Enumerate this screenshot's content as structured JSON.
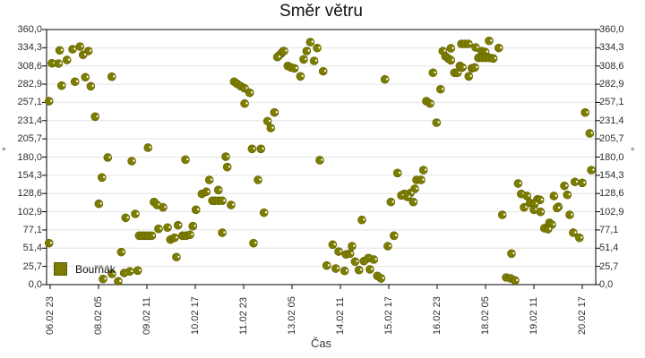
{
  "title": "Směr větru",
  "legend": {
    "label": "Bouřňák",
    "color": "#7c7c00"
  },
  "axes": {
    "y_left_title": "°",
    "y_right_title": "°",
    "x_title": "Čas",
    "y_ticks": [
      "360,0",
      "334,3",
      "308,6",
      "282,9",
      "257,1",
      "231,4",
      "205,7",
      "180,0",
      "154,3",
      "128,6",
      "102,9",
      "77,1",
      "51,4",
      "25,7",
      "0,0"
    ],
    "x_ticks": [
      "06.02 23",
      "08.02 05",
      "09.02 11",
      "10.02 17",
      "11.02 23",
      "13.02 05",
      "14.02 11",
      "15.02 17",
      "16.02 23",
      "18.02 05",
      "19.02 11",
      "20.02 17"
    ]
  },
  "colors": {
    "marker": "#7c7c00",
    "marker_edge": "#5e5e00",
    "grid": "#e4e4e4",
    "axis": "#000000"
  },
  "chart_data": {
    "type": "scatter",
    "title": "Směr větru",
    "xlabel": "Čas",
    "ylabel": "°",
    "legend_position": "bottom-left-inside",
    "grid": "horizontal-only",
    "y_axis": {
      "min": 0,
      "max": 360,
      "tick_step": 25.714,
      "tick_labels": [
        "360,0",
        "334,3",
        "308,6",
        "282,9",
        "257,1",
        "231,4",
        "205,7",
        "180,0",
        "154,3",
        "128,6",
        "102,9",
        "77,1",
        "51,4",
        "25,7",
        "0,0"
      ]
    },
    "x_axis": {
      "unit": "hours since 06.02 23:00",
      "tick_interval_hours": 30,
      "tick_labels": [
        "06.02 23",
        "08.02 05",
        "09.02 11",
        "10.02 17",
        "11.02 23",
        "13.02 05",
        "14.02 11",
        "15.02 17",
        "16.02 23",
        "18.02 05",
        "19.02 11",
        "20.02 17"
      ]
    },
    "series": [
      {
        "name": "Bouřňák",
        "color": "#7c7c00",
        "marker": "glossy-circle",
        "points_h_deg": [
          [
            5.9,
            330.6
          ],
          [
            13.9,
            332.2
          ],
          [
            18.5,
            336.0
          ],
          [
            23.7,
            329.7
          ],
          [
            20.4,
            324.3
          ],
          [
            1.1,
            312.4
          ],
          [
            5.2,
            312.0
          ],
          [
            10.4,
            317.1
          ],
          [
            15.4,
            286.4
          ],
          [
            21.8,
            292.7
          ],
          [
            7.1,
            280.8
          ],
          [
            25.2,
            280.0
          ],
          [
            38.2,
            293.4
          ],
          [
            -0.7,
            258.9
          ],
          [
            27.9,
            237.1
          ],
          [
            60.7,
            193.3
          ],
          [
            35.7,
            179.4
          ],
          [
            83.9,
            176.4
          ],
          [
            108.9,
            180.6
          ],
          [
            50.6,
            174.3
          ],
          [
            109.8,
            165.9
          ],
          [
            32.1,
            151.2
          ],
          [
            98.7,
            147.8
          ],
          [
            94.1,
            128.0
          ],
          [
            96.8,
            131.0
          ],
          [
            104.3,
            133.5
          ],
          [
            100.6,
            118.4
          ],
          [
            102.2,
            118.4
          ],
          [
            104.4,
            118.4
          ],
          [
            106.7,
            118.4
          ],
          [
            30.2,
            114.1
          ],
          [
            64.4,
            116.6
          ],
          [
            66.3,
            112.4
          ],
          [
            70.0,
            109.0
          ],
          [
            90.4,
            105.7
          ],
          [
            112.2,
            112.4
          ],
          [
            46.8,
            94.3
          ],
          [
            52.8,
            99.8
          ],
          [
            67.2,
            78.7
          ],
          [
            72.8,
            80.5
          ],
          [
            79.3,
            83.8
          ],
          [
            88.5,
            82.5
          ],
          [
            55.2,
            69.1
          ],
          [
            57.2,
            69.1
          ],
          [
            59.1,
            69.1
          ],
          [
            60.9,
            69.1
          ],
          [
            63.0,
            69.1
          ],
          [
            74.6,
            63.5
          ],
          [
            77.1,
            66.1
          ],
          [
            82.1,
            69.1
          ],
          [
            84.3,
            69.1
          ],
          [
            86.7,
            70.4
          ],
          [
            106.7,
            73.3
          ],
          [
            -0.7,
            58.5
          ],
          [
            44.1,
            45.9
          ],
          [
            78.3,
            38.8
          ],
          [
            32.8,
            8.0
          ],
          [
            38.3,
            15.2
          ],
          [
            42.2,
            4.7
          ],
          [
            45.9,
            16.4
          ],
          [
            49.4,
            18.6
          ],
          [
            54.3,
            19.8
          ],
          [
            161.3,
            342.3
          ],
          [
            165.6,
            333.9
          ],
          [
            159.1,
            329.7
          ],
          [
            144.6,
            329.7
          ],
          [
            141.8,
            322.9
          ],
          [
            143.3,
            326.3
          ],
          [
            145.0,
            329.7
          ],
          [
            140.9,
            321.2
          ],
          [
            157.2,
            317.9
          ],
          [
            163.7,
            315.8
          ],
          [
            147.4,
            308.6
          ],
          [
            149.3,
            306.5
          ],
          [
            151.5,
            305.3
          ],
          [
            169.3,
            301.1
          ],
          [
            155.2,
            293.9
          ],
          [
            207.6,
            289.6
          ],
          [
            114.1,
            286.4
          ],
          [
            115.9,
            283.4
          ],
          [
            118.2,
            280.0
          ],
          [
            120.6,
            277.0
          ],
          [
            123.7,
            270.7
          ],
          [
            120.6,
            255.5
          ],
          [
            139.1,
            242.9
          ],
          [
            134.8,
            230.7
          ],
          [
            136.8,
            221.0
          ],
          [
            125.2,
            191.6
          ],
          [
            130.7,
            191.6
          ],
          [
            167.2,
            175.6
          ],
          [
            215.4,
            157.5
          ],
          [
            128.9,
            147.8
          ],
          [
            226.1,
            135.2
          ],
          [
            223.3,
            129.2
          ],
          [
            219.6,
            128.0
          ],
          [
            217.8,
            125.9
          ],
          [
            221.5,
            123.8
          ],
          [
            225.2,
            116.6
          ],
          [
            211.3,
            116.6
          ],
          [
            132.6,
            101.5
          ],
          [
            193.3,
            91.3
          ],
          [
            213.2,
            69.1
          ],
          [
            126.1,
            58.5
          ],
          [
            175.2,
            56.4
          ],
          [
            187.2,
            54.3
          ],
          [
            209.4,
            54.3
          ],
          [
            178.9,
            46.7
          ],
          [
            183.5,
            42.6
          ],
          [
            185.9,
            43.8
          ],
          [
            189.1,
            32.5
          ],
          [
            194.6,
            33.2
          ],
          [
            197.4,
            37.5
          ],
          [
            200.7,
            35.4
          ],
          [
            171.5,
            26.9
          ],
          [
            177.1,
            22.7
          ],
          [
            182.6,
            19.3
          ],
          [
            191.5,
            20.6
          ],
          [
            198.3,
            21.5
          ],
          [
            202.9,
            12.3
          ],
          [
            205.2,
            8.8
          ],
          [
            231.5,
            161.7
          ],
          [
            227.2,
            147.8
          ],
          [
            230.0,
            147.8
          ],
          [
            335.6,
            161.7
          ],
          [
            290.2,
            142.7
          ],
          [
            318.9,
            139.4
          ],
          [
            325.4,
            144.9
          ],
          [
            330.0,
            143.6
          ],
          [
            292.1,
            128.0
          ],
          [
            295.7,
            125.1
          ],
          [
            302.2,
            120.4
          ],
          [
            303.7,
            119.6
          ],
          [
            312.4,
            125.1
          ],
          [
            320.7,
            126.7
          ],
          [
            297.6,
            115.3
          ],
          [
            300.4,
            114.1
          ],
          [
            293.9,
            109.0
          ],
          [
            315.2,
            109.9
          ],
          [
            314.3,
            108.2
          ],
          [
            300.0,
            105.7
          ],
          [
            304.1,
            102.7
          ],
          [
            280.4,
            98.5
          ],
          [
            322.2,
            98.5
          ],
          [
            309.6,
            87.2
          ],
          [
            311.1,
            84.6
          ],
          [
            306.5,
            79.6
          ],
          [
            308.7,
            78.3
          ],
          [
            324.4,
            73.3
          ],
          [
            328.2,
            66.1
          ],
          [
            286.1,
            43.8
          ],
          [
            282.8,
            10.1
          ],
          [
            285.6,
            8.8
          ],
          [
            288.3,
            5.9
          ],
          [
            272.2,
            344.0
          ],
          [
            255.0,
            339.8
          ],
          [
            257.2,
            339.8
          ],
          [
            259.4,
            339.8
          ],
          [
            263.9,
            334.7
          ],
          [
            278.2,
            333.9
          ],
          [
            248.5,
            333.5
          ],
          [
            267.6,
            329.7
          ],
          [
            269.8,
            328.4
          ],
          [
            243.5,
            329.7
          ],
          [
            245.2,
            322.1
          ],
          [
            247.1,
            318.7
          ],
          [
            248.5,
            316.6
          ],
          [
            265.6,
            320.0
          ],
          [
            268.0,
            320.0
          ],
          [
            270.2,
            320.0
          ],
          [
            272.6,
            320.0
          ],
          [
            274.8,
            319.2
          ],
          [
            254.1,
            308.6
          ],
          [
            255.6,
            306.5
          ],
          [
            261.5,
            305.3
          ],
          [
            263.3,
            306.5
          ],
          [
            250.7,
            299.0
          ],
          [
            252.6,
            299.0
          ],
          [
            237.4,
            299.0
          ],
          [
            259.6,
            293.9
          ],
          [
            242.1,
            275.7
          ],
          [
            233.3,
            258.9
          ],
          [
            235.6,
            255.5
          ],
          [
            239.6,
            228.6
          ],
          [
            331.8,
            242.9
          ],
          [
            334.6,
            213.5
          ]
        ]
      }
    ]
  }
}
